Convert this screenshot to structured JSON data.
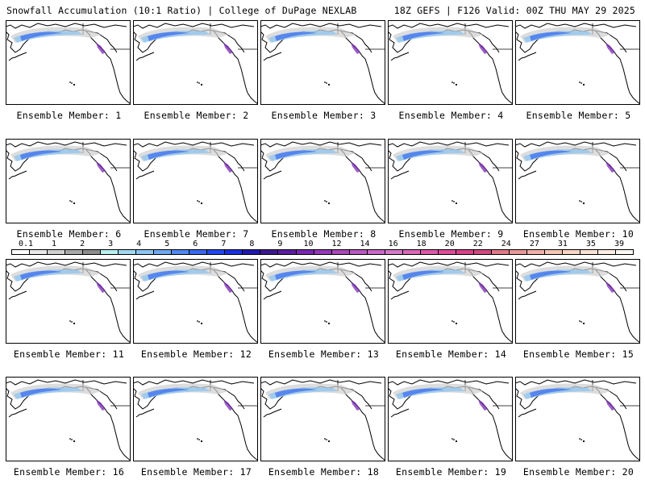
{
  "header": {
    "title_left": "Snowfall Accumulation (10:1 Ratio) | College of DuPage NEXLAB",
    "title_right": "18Z GEFS | F126 Valid: 00Z THU MAY 29 2025"
  },
  "members": [
    {
      "label": "Ensemble Member: 1"
    },
    {
      "label": "Ensemble Member: 2"
    },
    {
      "label": "Ensemble Member: 3"
    },
    {
      "label": "Ensemble Member: 4"
    },
    {
      "label": "Ensemble Member: 5"
    },
    {
      "label": "Ensemble Member: 6"
    },
    {
      "label": "Ensemble Member: 7"
    },
    {
      "label": "Ensemble Member: 8"
    },
    {
      "label": "Ensemble Member: 9"
    },
    {
      "label": "Ensemble Member: 10"
    },
    {
      "label": "Ensemble Member: 11"
    },
    {
      "label": "Ensemble Member: 12"
    },
    {
      "label": "Ensemble Member: 13"
    },
    {
      "label": "Ensemble Member: 14"
    },
    {
      "label": "Ensemble Member: 15"
    },
    {
      "label": "Ensemble Member: 16"
    },
    {
      "label": "Ensemble Member: 17"
    },
    {
      "label": "Ensemble Member: 18"
    },
    {
      "label": "Ensemble Member: 19"
    },
    {
      "label": "Ensemble Member: 20"
    }
  ],
  "colorbar": {
    "labels": [
      "0.1",
      "1",
      "2",
      "3",
      "4",
      "5",
      "6",
      "7",
      "8",
      "9",
      "10",
      "12",
      "14",
      "16",
      "18",
      "20",
      "22",
      "24",
      "27",
      "31",
      "35",
      "39"
    ],
    "colors": [
      "#ffffff",
      "#e8e8e8",
      "#cfcfcf",
      "#a8a8a8",
      "#8c8c8c",
      "#b8f0f0",
      "#a0d8f0",
      "#8cc4f0",
      "#6ea8f0",
      "#5088f0",
      "#3868f0",
      "#2048f0",
      "#1830e0",
      "#2018b0",
      "#3c1890",
      "#5a1ca0",
      "#7828b0",
      "#9438b8",
      "#a848b8",
      "#b858c0",
      "#c868c8",
      "#d478c8",
      "#d868b8",
      "#dc58a8",
      "#dc4c98",
      "#d84088",
      "#d04880",
      "#e07888",
      "#e89898",
      "#f0b0a8",
      "#f4c4b4",
      "#f8d4c4",
      "#fae0d4",
      "#fcece4",
      "#fef6f0"
    ]
  }
}
